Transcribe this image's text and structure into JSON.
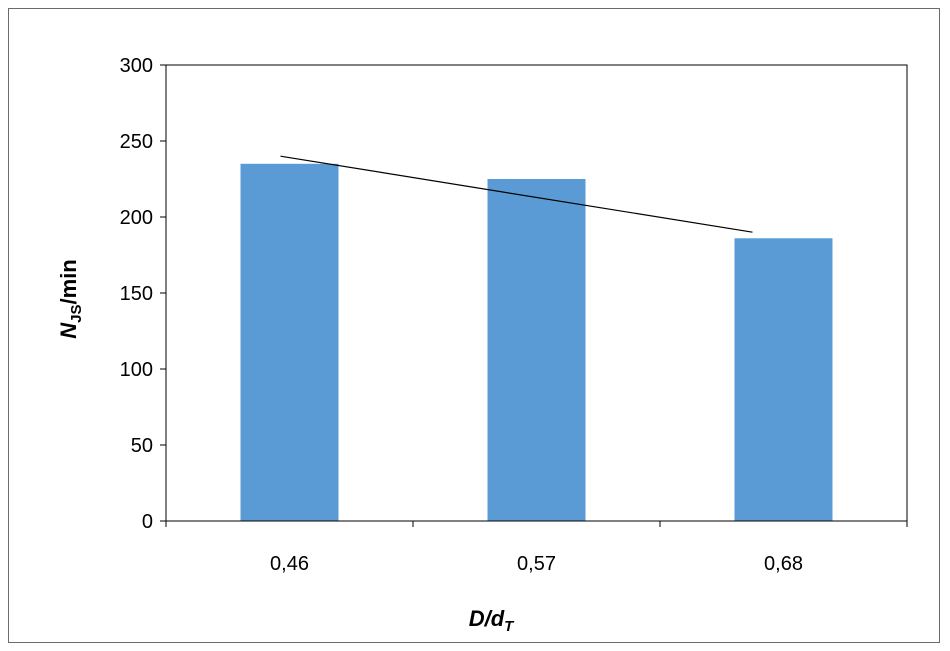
{
  "chart_data": {
    "type": "bar",
    "categories": [
      "0,46",
      "0,57",
      "0,68"
    ],
    "values": [
      235,
      225,
      186
    ],
    "ylim": [
      0,
      300
    ],
    "yticks": [
      0,
      50,
      100,
      150,
      200,
      250,
      300
    ],
    "trendline": {
      "type": "linear",
      "start": 240,
      "end": 190
    },
    "xlabel": {
      "main": "D/d",
      "sub": "T"
    },
    "ylabel": {
      "main": "N",
      "sub": "JS",
      "suffix": "/min"
    },
    "grid": false,
    "bar_color": "#5b9bd5",
    "line_color": "#000000"
  }
}
